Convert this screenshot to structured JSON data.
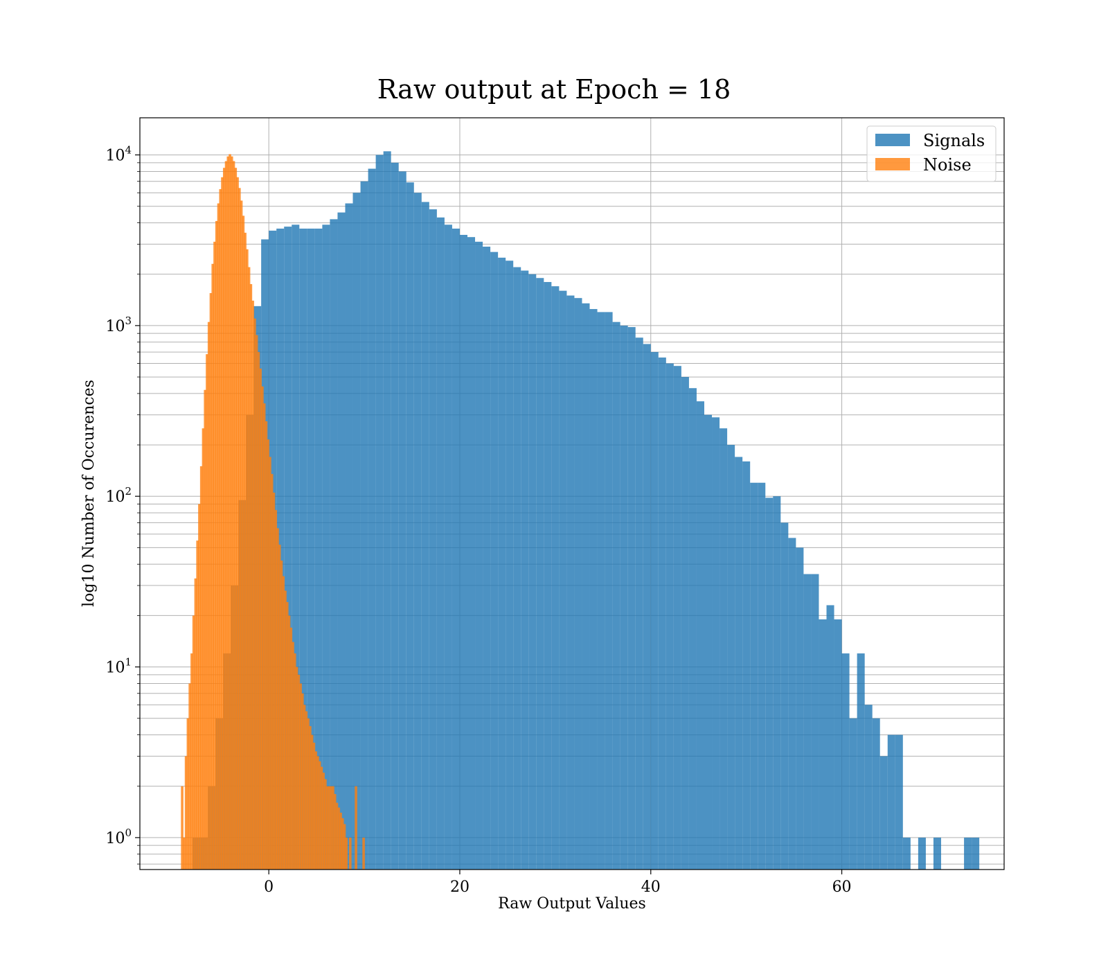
{
  "chart_data": {
    "type": "bar",
    "title": "Raw output at Epoch = 18",
    "xlabel": "Raw Output Values",
    "ylabel": "log10 Number of Occurences",
    "x_ticks": [
      0,
      20,
      40,
      60
    ],
    "y_ticks": [
      {
        "value": 1,
        "base": "10",
        "exp": "0"
      },
      {
        "value": 10,
        "base": "10",
        "exp": "1"
      },
      {
        "value": 100,
        "base": "10",
        "exp": "2"
      },
      {
        "value": 1000,
        "base": "10",
        "exp": "3"
      },
      {
        "value": 10000,
        "base": "10",
        "exp": "4"
      }
    ],
    "xlim": [
      -13.5,
      77
    ],
    "ylim": [
      0.65,
      16500
    ],
    "y_scale": "log",
    "grid": true,
    "legend_position": "top-right",
    "series": [
      {
        "name": "Signals",
        "color": "#1f77b4",
        "opacity": 0.8,
        "bin_width": 0.8,
        "bins": [
          [
            -8,
            1
          ],
          [
            -7.2,
            1
          ],
          [
            -6.4,
            2
          ],
          [
            -5.6,
            5
          ],
          [
            -4.8,
            12
          ],
          [
            -4,
            30
          ],
          [
            -3.2,
            95
          ],
          [
            -2.4,
            300
          ],
          [
            -1.6,
            1300
          ],
          [
            -0.8,
            3200
          ],
          [
            0,
            3600
          ],
          [
            0.8,
            3700
          ],
          [
            1.6,
            3800
          ],
          [
            2.4,
            3900
          ],
          [
            3.2,
            3700
          ],
          [
            4,
            3700
          ],
          [
            4.8,
            3700
          ],
          [
            5.6,
            3900
          ],
          [
            6.4,
            4200
          ],
          [
            7.2,
            4600
          ],
          [
            8,
            5200
          ],
          [
            8.8,
            6000
          ],
          [
            9.6,
            7000
          ],
          [
            10.4,
            8300
          ],
          [
            11.2,
            10000
          ],
          [
            12,
            10500
          ],
          [
            12.8,
            9000
          ],
          [
            13.6,
            8000
          ],
          [
            14.4,
            6900
          ],
          [
            15.2,
            6000
          ],
          [
            16,
            5300
          ],
          [
            16.8,
            4800
          ],
          [
            17.6,
            4300
          ],
          [
            18.4,
            3900
          ],
          [
            19.2,
            3700
          ],
          [
            20,
            3400
          ],
          [
            20.8,
            3300
          ],
          [
            21.6,
            3100
          ],
          [
            22.4,
            2900
          ],
          [
            23.2,
            2700
          ],
          [
            24,
            2500
          ],
          [
            24.8,
            2400
          ],
          [
            25.6,
            2200
          ],
          [
            26.4,
            2100
          ],
          [
            27.2,
            2000
          ],
          [
            28,
            1900
          ],
          [
            28.8,
            1800
          ],
          [
            29.6,
            1700
          ],
          [
            30.4,
            1600
          ],
          [
            31.2,
            1500
          ],
          [
            32,
            1450
          ],
          [
            32.8,
            1350
          ],
          [
            33.6,
            1250
          ],
          [
            34.4,
            1200
          ],
          [
            35.2,
            1200
          ],
          [
            36,
            1050
          ],
          [
            36.8,
            1000
          ],
          [
            37.6,
            980
          ],
          [
            38.4,
            850
          ],
          [
            39.2,
            780
          ],
          [
            40,
            700
          ],
          [
            40.8,
            650
          ],
          [
            41.6,
            600
          ],
          [
            42.4,
            580
          ],
          [
            43.2,
            500
          ],
          [
            44,
            430
          ],
          [
            44.8,
            360
          ],
          [
            45.6,
            300
          ],
          [
            46.4,
            290
          ],
          [
            47.2,
            250
          ],
          [
            48,
            200
          ],
          [
            48.8,
            170
          ],
          [
            49.6,
            160
          ],
          [
            50.4,
            120
          ],
          [
            51.2,
            120
          ],
          [
            52,
            98
          ],
          [
            52.8,
            100
          ],
          [
            53.6,
            70
          ],
          [
            54.4,
            57
          ],
          [
            55.2,
            50
          ],
          [
            56,
            35
          ],
          [
            56.8,
            35
          ],
          [
            57.6,
            19
          ],
          [
            58.4,
            23
          ],
          [
            59.2,
            19
          ],
          [
            60,
            12
          ],
          [
            60.8,
            5
          ],
          [
            61.6,
            12
          ],
          [
            62.4,
            6
          ],
          [
            63.2,
            5
          ],
          [
            64,
            3
          ],
          [
            64.8,
            4
          ],
          [
            65.6,
            4
          ],
          [
            66.4,
            1
          ],
          [
            68,
            1
          ],
          [
            69.6,
            1
          ],
          [
            72.8,
            1
          ],
          [
            73.6,
            1
          ]
        ]
      },
      {
        "name": "Noise",
        "color": "#ff7f0e",
        "opacity": 0.8,
        "bin_width": 0.26,
        "bins": [
          [
            -9.2,
            2
          ],
          [
            -9,
            1
          ],
          [
            -8.8,
            3
          ],
          [
            -8.6,
            5
          ],
          [
            -8.4,
            8
          ],
          [
            -8.2,
            12
          ],
          [
            -8,
            20
          ],
          [
            -7.8,
            33
          ],
          [
            -7.6,
            55
          ],
          [
            -7.4,
            90
          ],
          [
            -7.2,
            150
          ],
          [
            -7,
            250
          ],
          [
            -6.8,
            420
          ],
          [
            -6.6,
            680
          ],
          [
            -6.4,
            1050
          ],
          [
            -6.2,
            1550
          ],
          [
            -6,
            2300
          ],
          [
            -5.8,
            3100
          ],
          [
            -5.6,
            4100
          ],
          [
            -5.4,
            5200
          ],
          [
            -5.2,
            6300
          ],
          [
            -5,
            7400
          ],
          [
            -4.8,
            8400
          ],
          [
            -4.6,
            9200
          ],
          [
            -4.4,
            9800
          ],
          [
            -4.2,
            10100
          ],
          [
            -4,
            9800
          ],
          [
            -3.8,
            9200
          ],
          [
            -3.6,
            8400
          ],
          [
            -3.4,
            7400
          ],
          [
            -3.2,
            6400
          ],
          [
            -3,
            5400
          ],
          [
            -2.8,
            4400
          ],
          [
            -2.6,
            3500
          ],
          [
            -2.4,
            2800
          ],
          [
            -2.2,
            2200
          ],
          [
            -2,
            1750
          ],
          [
            -1.8,
            1400
          ],
          [
            -1.6,
            1100
          ],
          [
            -1.4,
            880
          ],
          [
            -1.2,
            700
          ],
          [
            -1,
            560
          ],
          [
            -0.8,
            440
          ],
          [
            -0.6,
            350
          ],
          [
            -0.4,
            275
          ],
          [
            -0.2,
            215
          ],
          [
            0,
            170
          ],
          [
            0.2,
            135
          ],
          [
            0.4,
            105
          ],
          [
            0.6,
            83
          ],
          [
            0.8,
            65
          ],
          [
            1,
            52
          ],
          [
            1.2,
            42
          ],
          [
            1.4,
            34
          ],
          [
            1.6,
            28
          ],
          [
            1.8,
            24
          ],
          [
            2,
            20
          ],
          [
            2.2,
            17
          ],
          [
            2.4,
            14
          ],
          [
            2.6,
            12
          ],
          [
            2.8,
            10
          ],
          [
            3,
            9
          ],
          [
            3.2,
            8
          ],
          [
            3.4,
            7
          ],
          [
            3.6,
            6
          ],
          [
            3.8,
            5.5
          ],
          [
            4,
            5
          ],
          [
            4.2,
            4.5
          ],
          [
            4.4,
            4
          ],
          [
            4.6,
            3.6
          ],
          [
            4.8,
            3.2
          ],
          [
            5,
            3
          ],
          [
            5.2,
            2.8
          ],
          [
            5.4,
            2.6
          ],
          [
            5.6,
            2.4
          ],
          [
            5.8,
            2.2
          ],
          [
            6,
            2
          ],
          [
            6.2,
            2
          ],
          [
            6.4,
            2
          ],
          [
            6.6,
            2
          ],
          [
            6.8,
            1.8
          ],
          [
            7,
            1.6
          ],
          [
            7.2,
            1.5
          ],
          [
            7.4,
            1.4
          ],
          [
            7.6,
            1.3
          ],
          [
            7.8,
            1.2
          ],
          [
            8,
            1
          ],
          [
            8.4,
            1
          ],
          [
            9,
            2
          ],
          [
            9.8,
            1
          ]
        ]
      }
    ]
  }
}
